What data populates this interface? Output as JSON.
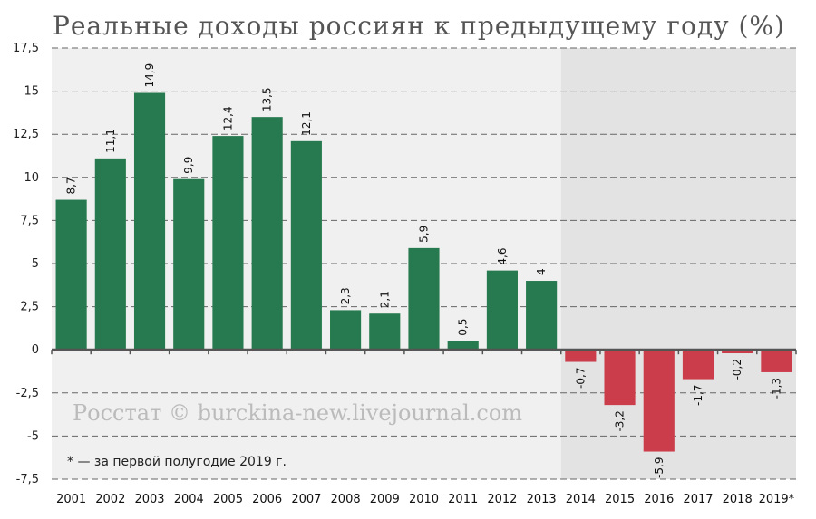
{
  "chart_data": {
    "type": "bar",
    "title": "Реальные доходы россиян к предыдущему году (%)",
    "categories": [
      "2001",
      "2002",
      "2003",
      "2004",
      "2005",
      "2006",
      "2007",
      "2008",
      "2009",
      "2010",
      "2011",
      "2012",
      "2013",
      "2014",
      "2015",
      "2016",
      "2017",
      "2018",
      "2019*"
    ],
    "values": [
      8.7,
      11.1,
      14.9,
      9.9,
      12.4,
      13.5,
      12.1,
      2.3,
      2.1,
      5.9,
      0.5,
      4.6,
      4,
      -0.7,
      -3.2,
      -5.9,
      -1.7,
      -0.2,
      -1.3
    ],
    "data_labels": [
      "8,7",
      "11,1",
      "14,9",
      "9,9",
      "12,4",
      "13,5",
      "12,1",
      "2,3",
      "2,1",
      "5,9",
      "0,5",
      "4,6",
      "4",
      "-0,7",
      "-3,2",
      "-5,9",
      "-1,7",
      "-0,2",
      "-1,3"
    ],
    "yticks": [
      17.5,
      15,
      12.5,
      10,
      7.5,
      5,
      2.5,
      0,
      -2.5,
      -5,
      -7.5
    ],
    "ytick_labels": [
      "17,5",
      "15",
      "12,5",
      "10",
      "7,5",
      "5",
      "2,5",
      "0",
      "-2,5",
      "-5",
      "-7,5"
    ],
    "ylim": [
      -7.5,
      17.5
    ],
    "grid": true,
    "colors": {
      "positive": "#277a4f",
      "negative": "#cc3d4c",
      "bg_left": "#f0f0f0",
      "bg_right": "#e3e3e3"
    },
    "shaded_from_category": "2014",
    "watermark": "Росстат © burckina-new.livejournal.com",
    "footnote": "* — за первой полугодие 2019 г."
  }
}
